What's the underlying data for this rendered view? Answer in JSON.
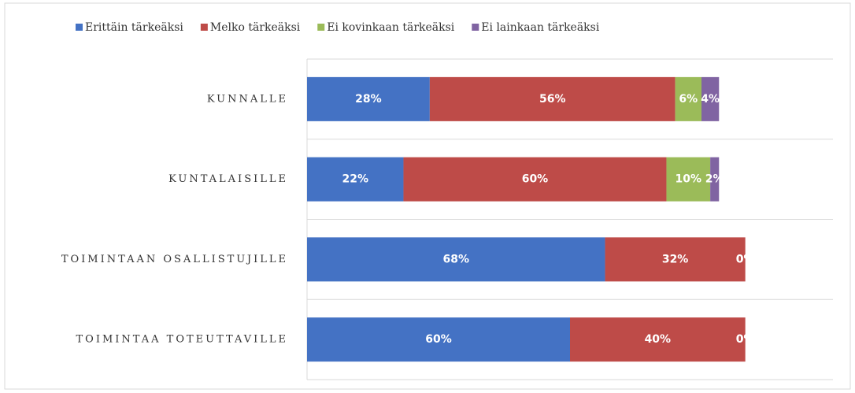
{
  "chart_data": {
    "type": "stacked-barh",
    "categories": [
      "KUNNALLE",
      "KUNTALAISILLE",
      "TOIMINTAAN OSALLISTUJILLE",
      "TOIMINTAA TOTEUTTAVILLE"
    ],
    "series": [
      {
        "name": "Erittäin tärkeäksi",
        "color": "#4472c4",
        "values": [
          28,
          22,
          68,
          60
        ],
        "value_labels": [
          "28%",
          "22%",
          "68%",
          "60%"
        ]
      },
      {
        "name": "Melko tärkeäksi",
        "color": "#be4b48",
        "values": [
          56,
          60,
          32,
          40
        ],
        "value_labels": [
          "56%",
          "60%",
          "32%",
          "40%"
        ]
      },
      {
        "name": "Ei kovinkaan tärkeäksi",
        "color": "#9bbb59",
        "values": [
          6,
          10,
          0,
          0
        ],
        "value_labels": [
          "6%",
          "10%",
          "0%",
          "0%"
        ]
      },
      {
        "name": "Ei lainkaan tärkeäksi",
        "color": "#8064a2",
        "values": [
          4,
          2,
          0,
          0
        ],
        "value_labels": [
          "4%",
          "2%",
          "0%",
          "0%"
        ]
      }
    ],
    "xlim": [
      0,
      120
    ],
    "legend": "top"
  }
}
